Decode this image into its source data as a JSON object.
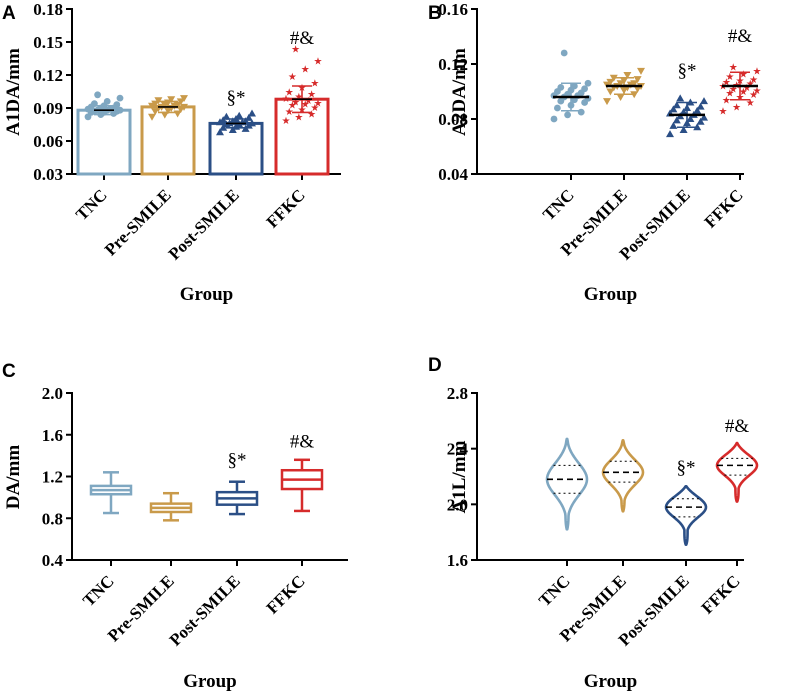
{
  "colors": {
    "TNC": "#7fa7c1",
    "Pre-SMILE": "#c99a4a",
    "Post-SMILE": "#2b4f86",
    "FFKC": "#d62b2b"
  },
  "chart_data": [
    {
      "panel": "A",
      "type": "bar",
      "ylabel": "A1DA/mm",
      "xlabel": "Group",
      "categories": [
        "TNC",
        "Pre-SMILE",
        "Post-SMILE",
        "FFKC"
      ],
      "ylim": [
        0.03,
        0.18
      ],
      "yticks": [
        "0.03",
        "0.06",
        "0.09",
        "0.12",
        "0.15",
        "0.18"
      ],
      "series": [
        {
          "name": "mean",
          "values": [
            0.088,
            0.091,
            0.076,
            0.098
          ]
        }
      ],
      "error": [
        0.004,
        0.005,
        0.004,
        0.012
      ],
      "points": [
        [
          0.082,
          0.084,
          0.085,
          0.086,
          0.086,
          0.087,
          0.087,
          0.088,
          0.088,
          0.088,
          0.089,
          0.089,
          0.09,
          0.09,
          0.091,
          0.092,
          0.093,
          0.094,
          0.096,
          0.099,
          0.102
        ],
        [
          0.082,
          0.084,
          0.085,
          0.087,
          0.088,
          0.089,
          0.09,
          0.09,
          0.091,
          0.091,
          0.092,
          0.092,
          0.093,
          0.093,
          0.094,
          0.095,
          0.096,
          0.097,
          0.098,
          0.099
        ],
        [
          0.068,
          0.07,
          0.071,
          0.072,
          0.073,
          0.074,
          0.075,
          0.075,
          0.076,
          0.076,
          0.077,
          0.077,
          0.078,
          0.078,
          0.079,
          0.08,
          0.081,
          0.082,
          0.083,
          0.085
        ],
        [
          0.08,
          0.083,
          0.086,
          0.088,
          0.09,
          0.092,
          0.094,
          0.095,
          0.096,
          0.097,
          0.098,
          0.1,
          0.102,
          0.104,
          0.106,
          0.11,
          0.114,
          0.12,
          0.127,
          0.134,
          0.145
        ]
      ],
      "annotations": [
        {
          "category": "Post-SMILE",
          "value": 0.094,
          "text": "§*"
        },
        {
          "category": "FFKC",
          "value": 0.148,
          "text": "#&"
        }
      ]
    },
    {
      "panel": "B",
      "type": "scatter",
      "ylabel": "A2DA/mm",
      "xlabel": "Group",
      "categories": [
        "TNC",
        "Pre-SMILE",
        "Post-SMILE",
        "FFKC"
      ],
      "ylim": [
        0.04,
        0.16
      ],
      "yticks": [
        "0.04",
        "0.08",
        "0.12",
        "0.16"
      ],
      "series": [
        {
          "name": "mean",
          "values": [
            0.096,
            0.104,
            0.083,
            0.104
          ]
        }
      ],
      "error": [
        0.01,
        0.006,
        0.009,
        0.01
      ],
      "points": [
        [
          0.08,
          0.083,
          0.085,
          0.088,
          0.09,
          0.092,
          0.093,
          0.094,
          0.095,
          0.096,
          0.097,
          0.097,
          0.098,
          0.099,
          0.1,
          0.101,
          0.102,
          0.103,
          0.104,
          0.106,
          0.128
        ],
        [
          0.093,
          0.096,
          0.098,
          0.1,
          0.101,
          0.102,
          0.103,
          0.103,
          0.104,
          0.104,
          0.105,
          0.105,
          0.106,
          0.106,
          0.107,
          0.108,
          0.109,
          0.11,
          0.112,
          0.115
        ],
        [
          0.069,
          0.072,
          0.074,
          0.075,
          0.077,
          0.078,
          0.079,
          0.08,
          0.081,
          0.082,
          0.083,
          0.084,
          0.085,
          0.086,
          0.087,
          0.088,
          0.089,
          0.09,
          0.092,
          0.093,
          0.095
        ],
        [
          0.087,
          0.09,
          0.093,
          0.095,
          0.097,
          0.099,
          0.1,
          0.101,
          0.102,
          0.103,
          0.104,
          0.105,
          0.106,
          0.107,
          0.108,
          0.109,
          0.11,
          0.112,
          0.114,
          0.116,
          0.119
        ]
      ],
      "annotations": [
        {
          "category": "Post-SMILE",
          "value": 0.111,
          "text": "§*"
        },
        {
          "category": "FFKC",
          "value": 0.136,
          "text": "#&"
        }
      ]
    },
    {
      "panel": "C",
      "type": "box",
      "ylabel": "DA/mm",
      "xlabel": "Group",
      "categories": [
        "TNC",
        "Pre-SMILE",
        "Post-SMILE",
        "FFKC"
      ],
      "ylim": [
        0.4,
        2.0
      ],
      "yticks": [
        "0.4",
        "0.8",
        "1.2",
        "1.6",
        "2.0"
      ],
      "boxes": [
        {
          "min": 0.85,
          "q1": 1.03,
          "median": 1.07,
          "q3": 1.11,
          "max": 1.24
        },
        {
          "min": 0.78,
          "q1": 0.86,
          "median": 0.9,
          "q3": 0.94,
          "max": 1.04
        },
        {
          "min": 0.84,
          "q1": 0.93,
          "median": 0.99,
          "q3": 1.05,
          "max": 1.15
        },
        {
          "min": 0.87,
          "q1": 1.08,
          "median": 1.17,
          "q3": 1.26,
          "max": 1.36
        }
      ],
      "annotations": [
        {
          "category": "Post-SMILE",
          "value": 1.3,
          "text": "§*"
        },
        {
          "category": "FFKC",
          "value": 1.48,
          "text": "#&"
        }
      ]
    },
    {
      "panel": "D",
      "type": "violin",
      "ylabel": "A1L/mm",
      "xlabel": "Group",
      "categories": [
        "TNC",
        "Pre-SMILE",
        "Post-SMILE",
        "FFKC"
      ],
      "ylim": [
        1.6,
        2.8
      ],
      "yticks": [
        "1.6",
        "2.0",
        "2.4",
        "2.8"
      ],
      "violins": [
        {
          "min": 1.82,
          "max": 2.47,
          "q1": 2.08,
          "median": 2.18,
          "q3": 2.28
        },
        {
          "min": 1.95,
          "max": 2.46,
          "q1": 2.16,
          "median": 2.23,
          "q3": 2.31
        },
        {
          "min": 1.71,
          "max": 2.13,
          "q1": 1.91,
          "median": 1.98,
          "q3": 2.04
        },
        {
          "min": 2.02,
          "max": 2.44,
          "q1": 2.21,
          "median": 2.28,
          "q3": 2.33
        }
      ],
      "annotations": [
        {
          "category": "Post-SMILE",
          "value": 2.22,
          "text": "§*"
        },
        {
          "category": "FFKC",
          "value": 2.52,
          "text": "#&"
        }
      ]
    }
  ]
}
